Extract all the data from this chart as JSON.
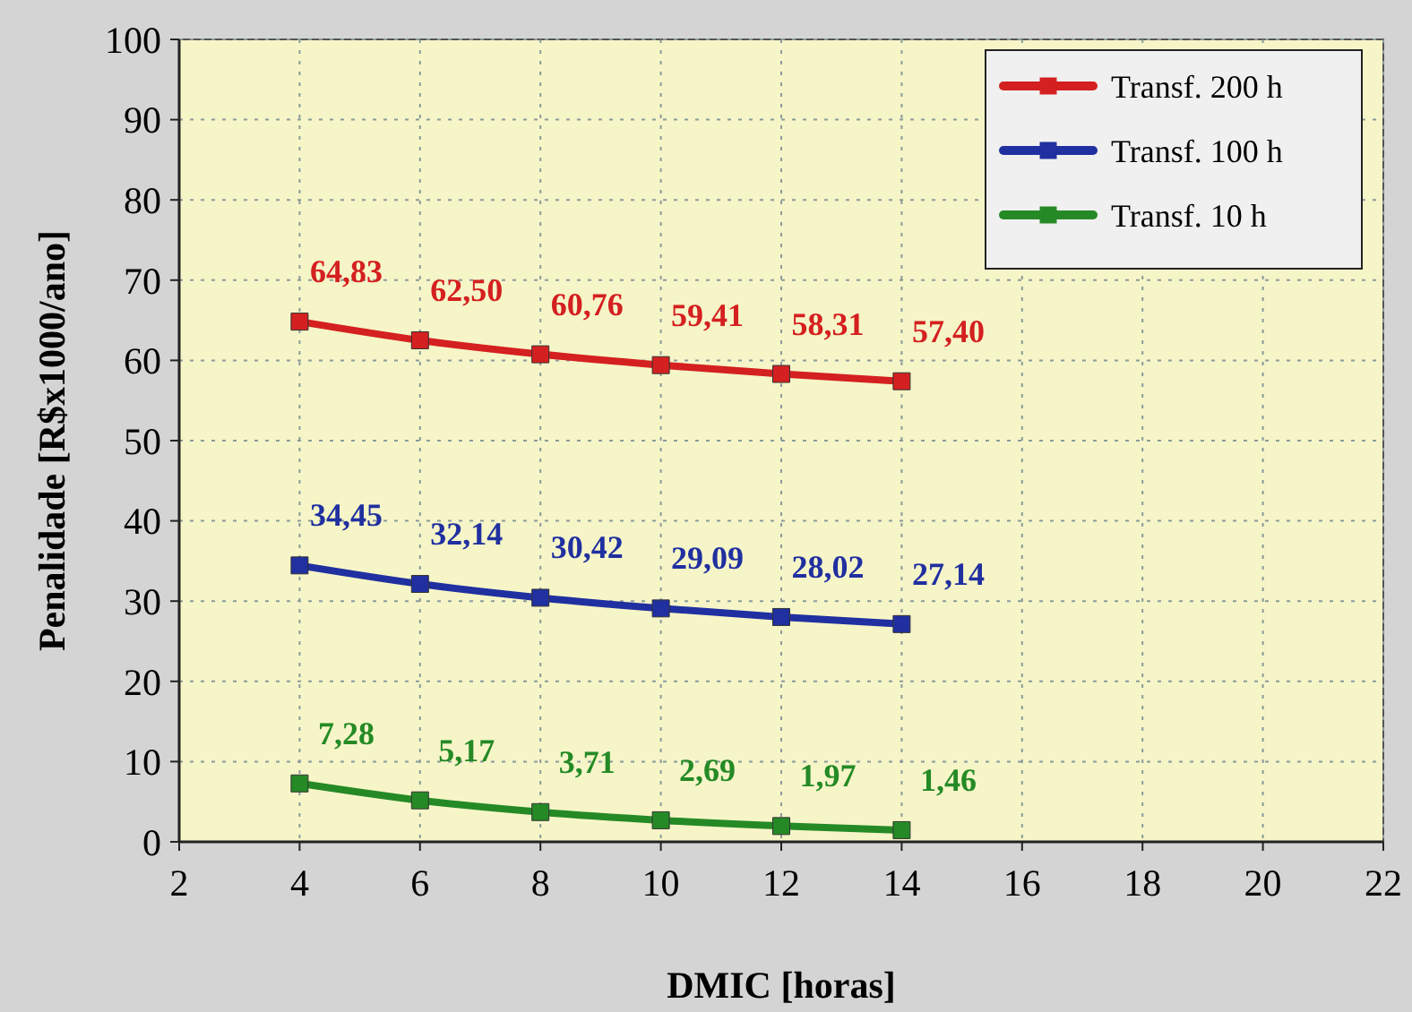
{
  "chart_data": {
    "type": "line",
    "xlabel": "DMIC [horas]",
    "ylabel": "Penalidade [R$x1000/ano]",
    "x": [
      4,
      6,
      8,
      10,
      12,
      14
    ],
    "series": [
      {
        "name": "Transf. 200 h",
        "color": "#d42020",
        "values": [
          64.83,
          62.5,
          60.76,
          59.41,
          58.31,
          57.4
        ],
        "value_labels": [
          "64,83",
          "62,50",
          "60,76",
          "59,41",
          "58,31",
          "57,40"
        ]
      },
      {
        "name": "Transf. 100 h",
        "color": "#2030a0",
        "values": [
          34.45,
          32.14,
          30.42,
          29.09,
          28.02,
          27.14
        ],
        "value_labels": [
          "34,45",
          "32,14",
          "30,42",
          "29,09",
          "28,02",
          "27,14"
        ]
      },
      {
        "name": "Transf. 10 h",
        "color": "#258a25",
        "values": [
          7.28,
          5.17,
          3.71,
          2.69,
          1.97,
          1.46
        ],
        "value_labels": [
          "7,28",
          "5,17",
          "3,71",
          "2,69",
          "1,97",
          "1,46"
        ]
      }
    ],
    "xlim": [
      2,
      22
    ],
    "xticks": [
      2,
      4,
      6,
      8,
      10,
      12,
      14,
      16,
      18,
      20,
      22
    ],
    "ylim": [
      0,
      100
    ],
    "yticks": [
      0,
      10,
      20,
      30,
      40,
      50,
      60,
      70,
      80,
      90,
      100
    ],
    "grid": true,
    "legend": "top right",
    "marker": "square",
    "line_style": "solid"
  }
}
